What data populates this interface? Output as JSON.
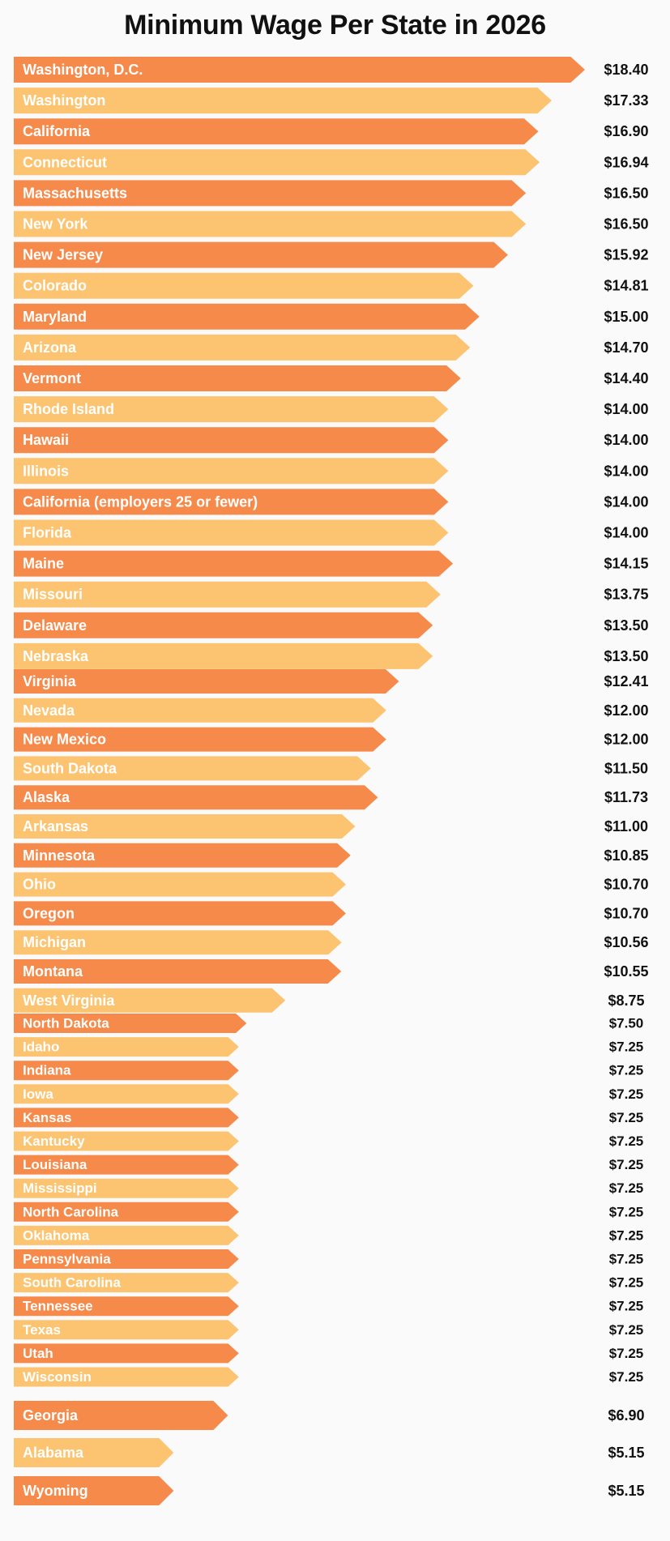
{
  "chart_data": {
    "type": "bar",
    "orientation": "horizontal",
    "title": "Minimum Wage Per State in 2026",
    "xlabel": "",
    "ylabel": "",
    "grid": false,
    "legend": "none",
    "xlim": [
      0,
      18.4
    ],
    "colors": {
      "dark": "#F58A4B",
      "light": "#FCC470"
    },
    "categories": [
      "Washington, D.C.",
      "Washington",
      "California",
      "Connecticut",
      "Massachusetts",
      "New York",
      "New Jersey",
      "Colorado",
      "Maryland",
      "Arizona",
      "Vermont",
      "Rhode Island",
      "Hawaii",
      "Illinois",
      "California (employers 25 or fewer)",
      "Florida",
      "Maine",
      "Missouri",
      "Delaware",
      "Nebraska",
      "Virginia",
      "Nevada",
      "New Mexico",
      "South Dakota",
      "Alaska",
      "Arkansas",
      "Minnesota",
      "Ohio",
      "Oregon",
      "Michigan",
      "Montana",
      "West Virginia",
      "North Dakota",
      "Idaho",
      "Indiana",
      "Iowa",
      "Kansas",
      "Kantucky",
      "Louisiana",
      "Mississippi",
      "North Carolina",
      "Oklahoma",
      "Pennsylvania",
      "South Carolina",
      "Tennessee",
      "Texas",
      "Utah",
      "Wisconsin",
      "Georgia",
      "Alabama",
      "Wyoming"
    ],
    "values": [
      18.4,
      17.33,
      16.9,
      16.94,
      16.5,
      16.5,
      15.92,
      14.81,
      15.0,
      14.7,
      14.4,
      14.0,
      14.0,
      14.0,
      14.0,
      14.0,
      14.15,
      13.75,
      13.5,
      13.5,
      12.41,
      12.0,
      12.0,
      11.5,
      11.73,
      11.0,
      10.85,
      10.7,
      10.7,
      10.56,
      10.55,
      8.75,
      7.5,
      7.25,
      7.25,
      7.25,
      7.25,
      7.25,
      7.25,
      7.25,
      7.25,
      7.25,
      7.25,
      7.25,
      7.25,
      7.25,
      7.25,
      7.25,
      6.9,
      5.15,
      5.15
    ],
    "value_labels": [
      "$18.40",
      "$17.33",
      "$16.90",
      "$16.94",
      "$16.50",
      "$16.50",
      "$15.92",
      "$14.81",
      "$15.00",
      "$14.70",
      "$14.40",
      "$14.00",
      "$14.00",
      "$14.00",
      "$14.00",
      "$14.00",
      "$14.15",
      "$13.75",
      "$13.50",
      "$13.50",
      "$12.41",
      "$12.00",
      "$12.00",
      "$11.50",
      "$11.73",
      "$11.00",
      "$10.85",
      "$10.70",
      "$10.70",
      "$10.56",
      "$10.55",
      "$8.75",
      "$7.50",
      "$7.25",
      "$7.25",
      "$7.25",
      "$7.25",
      "$7.25",
      "$7.25",
      "$7.25",
      "$7.25",
      "$7.25",
      "$7.25",
      "$7.25",
      "$7.25",
      "$7.25",
      "$7.25",
      "$7.25",
      "$6.90",
      "$5.15",
      "$5.15"
    ]
  }
}
